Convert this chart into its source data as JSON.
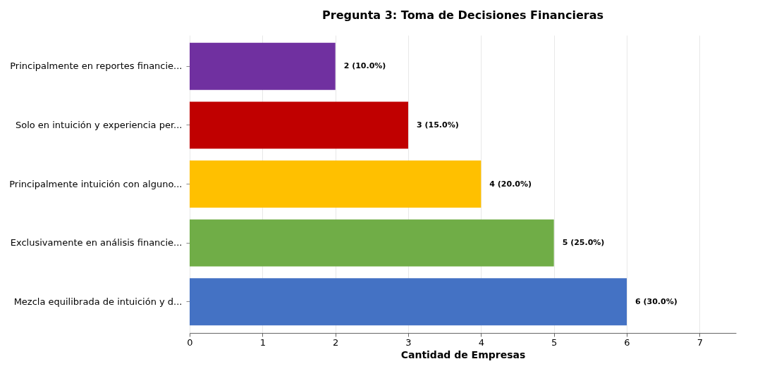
{
  "chart_data": {
    "type": "bar",
    "orientation": "horizontal",
    "title": "Pregunta 3: Toma de Decisiones Financieras",
    "xlabel": "Cantidad de Empresas",
    "categories": [
      "Principalmente en reportes financie...",
      "Solo en intuición y experiencia per...",
      "Principalmente intuición con alguno...",
      "Exclusivamente en análisis financie...",
      "Mezcla equilibrada de intuición y d..."
    ],
    "values": [
      2,
      3,
      4,
      5,
      6
    ],
    "colors": [
      "#7030a0",
      "#c00000",
      "#ffc000",
      "#70ad47",
      "#4472c4"
    ],
    "value_labels": [
      "2 (10.0%)",
      "3 (15.0%)",
      "4 (20.0%)",
      "5 (25.0%)",
      "6 (30.0%)"
    ],
    "xlim": [
      0,
      7.5
    ],
    "xticks": [
      0,
      1,
      2,
      3,
      4,
      5,
      6,
      7
    ],
    "grid": "x"
  }
}
